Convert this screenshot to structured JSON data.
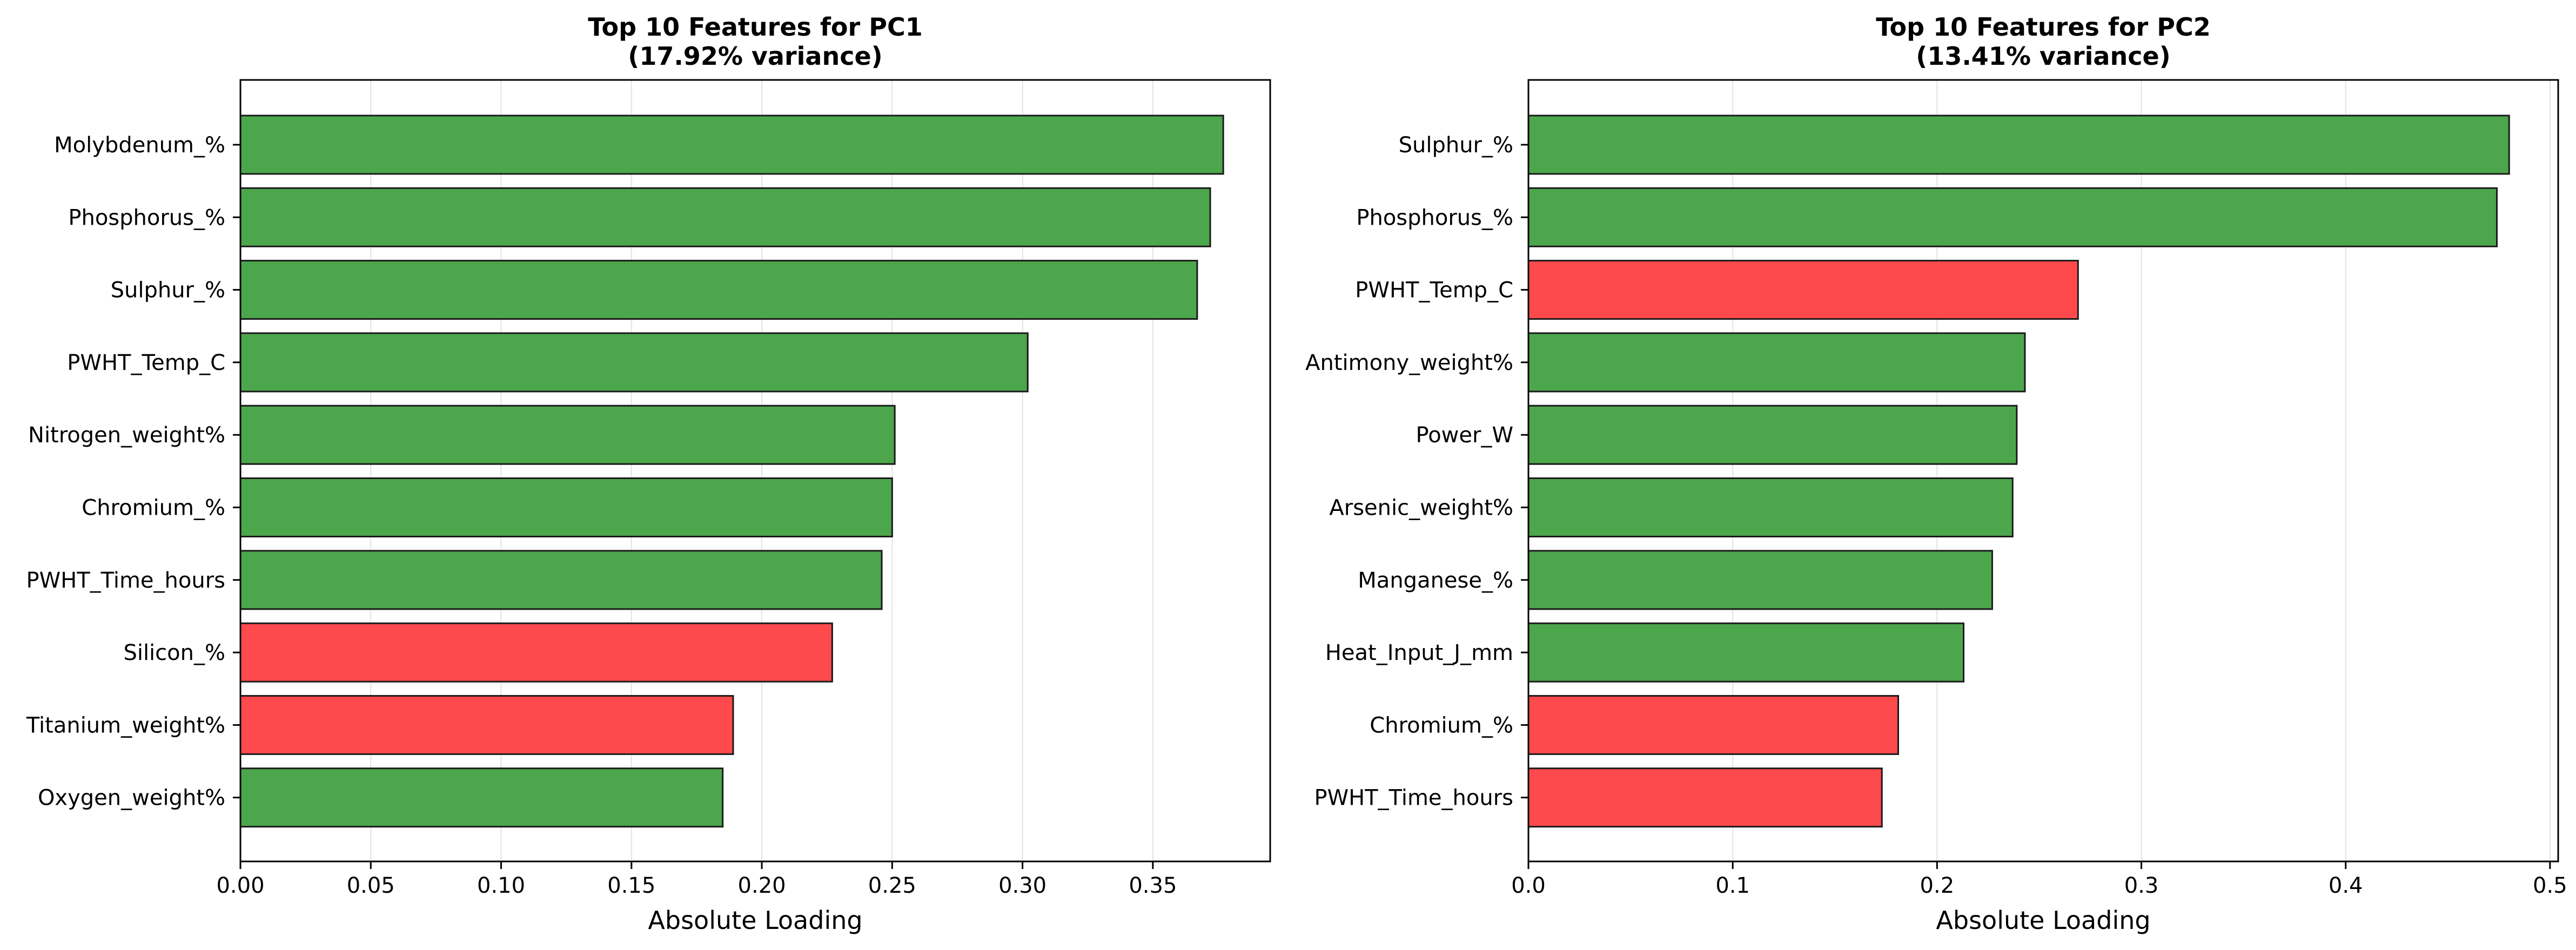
{
  "colors": {
    "positive": "#4ca64c",
    "negative": "#ff4a4d"
  },
  "chart_data": [
    {
      "type": "bar",
      "orientation": "horizontal",
      "title_line1": "Top 10 Features for PC1",
      "title_line2": "(17.92% variance)",
      "xlabel": "Absolute Loading",
      "ylabel": "",
      "xlim": [
        0,
        0.395
      ],
      "xticks": [
        "0.00",
        "0.05",
        "0.10",
        "0.15",
        "0.20",
        "0.25",
        "0.30",
        "0.35"
      ],
      "grid": "x",
      "categories": [
        "Molybdenum_%",
        "Phosphorus_%",
        "Sulphur_%",
        "PWHT_Temp_C",
        "Nitrogen_weight%",
        "Chromium_%",
        "PWHT_Time_hours",
        "Silicon_%",
        "Titanium_weight%",
        "Oxygen_weight%"
      ],
      "values": [
        0.377,
        0.372,
        0.367,
        0.302,
        0.251,
        0.25,
        0.246,
        0.227,
        0.189,
        0.185
      ],
      "signs": [
        "positive",
        "positive",
        "positive",
        "positive",
        "positive",
        "positive",
        "positive",
        "negative",
        "negative",
        "positive"
      ]
    },
    {
      "type": "bar",
      "orientation": "horizontal",
      "title_line1": "Top 10 Features for PC2",
      "title_line2": "(13.41% variance)",
      "xlabel": "Absolute Loading",
      "ylabel": "",
      "xlim": [
        0,
        0.504
      ],
      "xticks": [
        "0.0",
        "0.1",
        "0.2",
        "0.3",
        "0.4",
        "0.5"
      ],
      "grid": "x",
      "categories": [
        "Sulphur_%",
        "Phosphorus_%",
        "PWHT_Temp_C",
        "Antimony_weight%",
        "Power_W",
        "Arsenic_weight%",
        "Manganese_%",
        "Heat_Input_J_mm",
        "Chromium_%",
        "PWHT_Time_hours"
      ],
      "values": [
        0.48,
        0.474,
        0.269,
        0.243,
        0.239,
        0.237,
        0.227,
        0.213,
        0.181,
        0.173
      ],
      "signs": [
        "positive",
        "positive",
        "negative",
        "positive",
        "positive",
        "positive",
        "positive",
        "positive",
        "negative",
        "negative"
      ]
    }
  ]
}
